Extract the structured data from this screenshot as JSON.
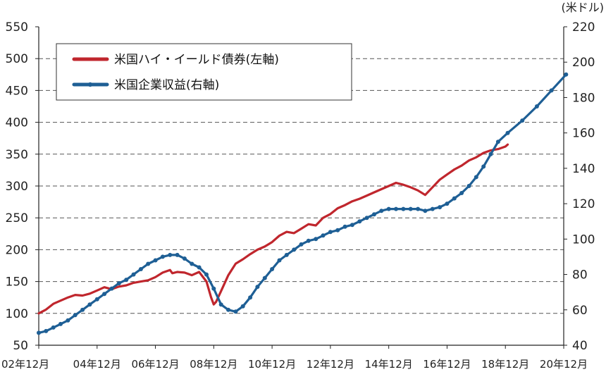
{
  "chart_data": {
    "type": "line",
    "right_axis_unit": "(米ドル)",
    "x_ticks": [
      "02年12月",
      "04年12月",
      "06年12月",
      "08年12月",
      "10年12月",
      "12年12月",
      "14年12月",
      "16年12月",
      "18年12月",
      "20年12月"
    ],
    "y_left": {
      "min": 50,
      "max": 550,
      "step": 50,
      "ticks": [
        "550",
        "500",
        "450",
        "400",
        "350",
        "300",
        "250",
        "200",
        "150",
        "100",
        "50"
      ]
    },
    "y_right": {
      "min": 40,
      "max": 220,
      "step": 20,
      "ticks": [
        "220",
        "200",
        "180",
        "160",
        "140",
        "120",
        "100",
        "80",
        "60",
        "40"
      ]
    },
    "grid": true,
    "legend_position": "top-left",
    "colors": {
      "high_yield": "#c0262d",
      "earnings": "#1e5f95",
      "grid": "#555555",
      "axis": "#222222"
    },
    "series": [
      {
        "name": "米国ハイ・イールド債券(左軸)",
        "axis": "left",
        "markers": false,
        "points": [
          [
            2002.92,
            100
          ],
          [
            2003.17,
            106
          ],
          [
            2003.42,
            115
          ],
          [
            2003.67,
            120
          ],
          [
            2003.92,
            125
          ],
          [
            2004.17,
            129
          ],
          [
            2004.42,
            128
          ],
          [
            2004.67,
            131
          ],
          [
            2004.92,
            136
          ],
          [
            2005.17,
            141
          ],
          [
            2005.42,
            138
          ],
          [
            2005.67,
            142
          ],
          [
            2005.92,
            144
          ],
          [
            2006.17,
            148
          ],
          [
            2006.42,
            150
          ],
          [
            2006.67,
            152
          ],
          [
            2006.92,
            157
          ],
          [
            2007.17,
            164
          ],
          [
            2007.42,
            168
          ],
          [
            2007.5,
            163
          ],
          [
            2007.67,
            165
          ],
          [
            2007.92,
            164
          ],
          [
            2008.17,
            160
          ],
          [
            2008.42,
            165
          ],
          [
            2008.67,
            150
          ],
          [
            2008.83,
            125
          ],
          [
            2008.92,
            114
          ],
          [
            2009.0,
            118
          ],
          [
            2009.17,
            135
          ],
          [
            2009.42,
            160
          ],
          [
            2009.67,
            178
          ],
          [
            2009.92,
            185
          ],
          [
            2010.17,
            193
          ],
          [
            2010.42,
            200
          ],
          [
            2010.67,
            205
          ],
          [
            2010.92,
            212
          ],
          [
            2011.17,
            222
          ],
          [
            2011.42,
            228
          ],
          [
            2011.67,
            226
          ],
          [
            2011.92,
            233
          ],
          [
            2012.17,
            240
          ],
          [
            2012.42,
            238
          ],
          [
            2012.67,
            250
          ],
          [
            2012.92,
            256
          ],
          [
            2013.17,
            265
          ],
          [
            2013.42,
            270
          ],
          [
            2013.67,
            276
          ],
          [
            2013.92,
            280
          ],
          [
            2014.17,
            285
          ],
          [
            2014.42,
            290
          ],
          [
            2014.67,
            295
          ],
          [
            2014.92,
            300
          ],
          [
            2015.17,
            305
          ],
          [
            2015.42,
            302
          ],
          [
            2015.67,
            298
          ],
          [
            2015.92,
            293
          ],
          [
            2016.17,
            286
          ],
          [
            2016.42,
            298
          ],
          [
            2016.67,
            310
          ],
          [
            2016.92,
            318
          ],
          [
            2017.17,
            326
          ],
          [
            2017.42,
            332
          ],
          [
            2017.67,
            340
          ],
          [
            2017.92,
            345
          ],
          [
            2018.17,
            352
          ],
          [
            2018.42,
            356
          ],
          [
            2018.67,
            358
          ],
          [
            2018.92,
            362
          ],
          [
            2019.0,
            365
          ]
        ]
      },
      {
        "name": "米国企業収益(右軸)",
        "axis": "right",
        "markers": true,
        "points": [
          [
            2002.92,
            47
          ],
          [
            2003.17,
            48
          ],
          [
            2003.42,
            50
          ],
          [
            2003.67,
            52
          ],
          [
            2003.92,
            54
          ],
          [
            2004.17,
            57
          ],
          [
            2004.42,
            60
          ],
          [
            2004.67,
            63
          ],
          [
            2004.92,
            66
          ],
          [
            2005.17,
            69
          ],
          [
            2005.42,
            72
          ],
          [
            2005.67,
            75
          ],
          [
            2005.92,
            77
          ],
          [
            2006.17,
            80
          ],
          [
            2006.42,
            83
          ],
          [
            2006.67,
            86
          ],
          [
            2006.92,
            88
          ],
          [
            2007.17,
            90
          ],
          [
            2007.42,
            91
          ],
          [
            2007.67,
            91
          ],
          [
            2007.92,
            89
          ],
          [
            2008.17,
            86
          ],
          [
            2008.42,
            84
          ],
          [
            2008.67,
            80
          ],
          [
            2008.92,
            72
          ],
          [
            2009.17,
            63
          ],
          [
            2009.42,
            60
          ],
          [
            2009.67,
            59
          ],
          [
            2009.92,
            62
          ],
          [
            2010.17,
            67
          ],
          [
            2010.42,
            73
          ],
          [
            2010.67,
            78
          ],
          [
            2010.92,
            83
          ],
          [
            2011.17,
            88
          ],
          [
            2011.42,
            91
          ],
          [
            2011.67,
            94
          ],
          [
            2011.92,
            97
          ],
          [
            2012.17,
            99
          ],
          [
            2012.42,
            100
          ],
          [
            2012.67,
            102
          ],
          [
            2012.92,
            104
          ],
          [
            2013.17,
            105
          ],
          [
            2013.42,
            107
          ],
          [
            2013.67,
            108
          ],
          [
            2013.92,
            110
          ],
          [
            2014.17,
            112
          ],
          [
            2014.42,
            114
          ],
          [
            2014.67,
            116
          ],
          [
            2014.92,
            117
          ],
          [
            2015.17,
            117
          ],
          [
            2015.42,
            117
          ],
          [
            2015.67,
            117
          ],
          [
            2015.92,
            117
          ],
          [
            2016.17,
            116
          ],
          [
            2016.42,
            117
          ],
          [
            2016.67,
            118
          ],
          [
            2016.92,
            120
          ],
          [
            2017.17,
            123
          ],
          [
            2017.42,
            126
          ],
          [
            2017.67,
            130
          ],
          [
            2017.92,
            135
          ],
          [
            2018.17,
            141
          ],
          [
            2018.42,
            148
          ],
          [
            2018.67,
            155
          ],
          [
            2019.0,
            160
          ],
          [
            2019.5,
            167
          ],
          [
            2020.0,
            175
          ],
          [
            2020.5,
            184
          ],
          [
            2021.0,
            193
          ]
        ]
      }
    ]
  }
}
